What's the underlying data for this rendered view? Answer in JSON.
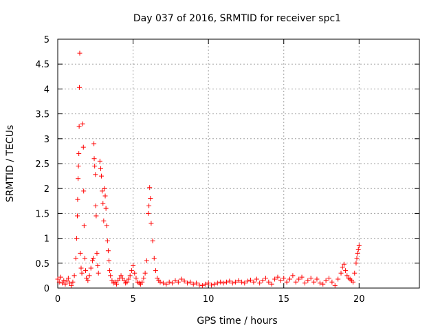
{
  "chart_data": {
    "type": "scatter",
    "title": "Day 037 of 2016, SRMTID for receiver spc1",
    "xlabel": "GPS time / hours",
    "ylabel": "SRMTID / TECUs",
    "xlim": [
      0,
      24
    ],
    "ylim": [
      0,
      5
    ],
    "xticks": [
      0,
      5,
      10,
      15,
      20
    ],
    "xtick_labels": [
      "0",
      "5",
      "10",
      "15",
      "20"
    ],
    "yticks": [
      0,
      0.5,
      1,
      1.5,
      2,
      2.5,
      3,
      3.5,
      4,
      4.5,
      5
    ],
    "ytick_labels": [
      "0",
      "0.5",
      "1",
      "1.5",
      "2",
      "2.5",
      "3",
      "3.5",
      "4",
      "4.5",
      "5"
    ],
    "grid": true,
    "marker": "+",
    "color": "#ff0000",
    "series": [
      {
        "name": "SRMTID",
        "points": [
          [
            0.0,
            0.18
          ],
          [
            0.1,
            0.12
          ],
          [
            0.2,
            0.22
          ],
          [
            0.3,
            0.1
          ],
          [
            0.4,
            0.15
          ],
          [
            0.5,
            0.08
          ],
          [
            0.6,
            0.14
          ],
          [
            0.7,
            0.2
          ],
          [
            0.8,
            0.1
          ],
          [
            0.9,
            0.05
          ],
          [
            1.0,
            0.12
          ],
          [
            1.1,
            0.25
          ],
          [
            1.2,
            0.6
          ],
          [
            1.25,
            1.0
          ],
          [
            1.3,
            1.45
          ],
          [
            1.32,
            1.78
          ],
          [
            1.35,
            2.2
          ],
          [
            1.37,
            2.45
          ],
          [
            1.4,
            2.7
          ],
          [
            1.42,
            3.25
          ],
          [
            1.44,
            4.03
          ],
          [
            1.46,
            4.72
          ],
          [
            1.5,
            0.7
          ],
          [
            1.55,
            0.4
          ],
          [
            1.6,
            0.3
          ],
          [
            1.65,
            3.3
          ],
          [
            1.7,
            2.83
          ],
          [
            1.72,
            1.95
          ],
          [
            1.75,
            1.25
          ],
          [
            1.8,
            0.6
          ],
          [
            1.85,
            0.35
          ],
          [
            1.9,
            0.2
          ],
          [
            2.0,
            0.15
          ],
          [
            2.1,
            0.25
          ],
          [
            2.2,
            0.4
          ],
          [
            2.3,
            0.55
          ],
          [
            2.35,
            0.6
          ],
          [
            2.4,
            2.9
          ],
          [
            2.42,
            2.6
          ],
          [
            2.45,
            2.45
          ],
          [
            2.5,
            2.28
          ],
          [
            2.52,
            1.65
          ],
          [
            2.55,
            1.45
          ],
          [
            2.6,
            0.7
          ],
          [
            2.65,
            0.45
          ],
          [
            2.7,
            0.3
          ],
          [
            2.8,
            2.55
          ],
          [
            2.85,
            2.4
          ],
          [
            2.9,
            2.25
          ],
          [
            2.95,
            1.95
          ],
          [
            3.0,
            1.7
          ],
          [
            3.05,
            1.35
          ],
          [
            3.1,
            2.0
          ],
          [
            3.15,
            1.85
          ],
          [
            3.2,
            1.6
          ],
          [
            3.25,
            1.25
          ],
          [
            3.3,
            0.95
          ],
          [
            3.35,
            0.75
          ],
          [
            3.4,
            0.55
          ],
          [
            3.45,
            0.35
          ],
          [
            3.5,
            0.25
          ],
          [
            3.6,
            0.15
          ],
          [
            3.7,
            0.1
          ],
          [
            3.8,
            0.12
          ],
          [
            3.9,
            0.08
          ],
          [
            4.0,
            0.15
          ],
          [
            4.1,
            0.2
          ],
          [
            4.2,
            0.25
          ],
          [
            4.3,
            0.2
          ],
          [
            4.4,
            0.15
          ],
          [
            4.5,
            0.1
          ],
          [
            4.6,
            0.12
          ],
          [
            4.7,
            0.18
          ],
          [
            4.8,
            0.25
          ],
          [
            4.9,
            0.35
          ],
          [
            5.0,
            0.45
          ],
          [
            5.1,
            0.3
          ],
          [
            5.2,
            0.2
          ],
          [
            5.3,
            0.12
          ],
          [
            5.4,
            0.1
          ],
          [
            5.5,
            0.08
          ],
          [
            5.6,
            0.12
          ],
          [
            5.7,
            0.2
          ],
          [
            5.8,
            0.3
          ],
          [
            5.9,
            0.55
          ],
          [
            6.0,
            1.5
          ],
          [
            6.05,
            1.65
          ],
          [
            6.1,
            2.02
          ],
          [
            6.15,
            1.8
          ],
          [
            6.2,
            1.3
          ],
          [
            6.3,
            0.95
          ],
          [
            6.4,
            0.6
          ],
          [
            6.5,
            0.35
          ],
          [
            6.6,
            0.2
          ],
          [
            6.7,
            0.15
          ],
          [
            6.8,
            0.12
          ],
          [
            7.0,
            0.1
          ],
          [
            7.2,
            0.08
          ],
          [
            7.4,
            0.12
          ],
          [
            7.6,
            0.1
          ],
          [
            7.8,
            0.15
          ],
          [
            8.0,
            0.12
          ],
          [
            8.2,
            0.18
          ],
          [
            8.4,
            0.14
          ],
          [
            8.6,
            0.1
          ],
          [
            8.8,
            0.12
          ],
          [
            9.0,
            0.08
          ],
          [
            9.2,
            0.1
          ],
          [
            9.4,
            0.06
          ],
          [
            9.6,
            0.05
          ],
          [
            9.8,
            0.08
          ],
          [
            10.0,
            0.1
          ],
          [
            10.2,
            0.06
          ],
          [
            10.4,
            0.08
          ],
          [
            10.6,
            0.1
          ],
          [
            10.8,
            0.12
          ],
          [
            11.0,
            0.1
          ],
          [
            11.2,
            0.12
          ],
          [
            11.4,
            0.14
          ],
          [
            11.6,
            0.1
          ],
          [
            11.8,
            0.12
          ],
          [
            12.0,
            0.15
          ],
          [
            12.2,
            0.12
          ],
          [
            12.4,
            0.1
          ],
          [
            12.6,
            0.14
          ],
          [
            12.8,
            0.16
          ],
          [
            13.0,
            0.12
          ],
          [
            13.2,
            0.18
          ],
          [
            13.4,
            0.1
          ],
          [
            13.6,
            0.15
          ],
          [
            13.8,
            0.2
          ],
          [
            14.0,
            0.12
          ],
          [
            14.2,
            0.08
          ],
          [
            14.4,
            0.18
          ],
          [
            14.6,
            0.22
          ],
          [
            14.8,
            0.15
          ],
          [
            15.0,
            0.2
          ],
          [
            15.2,
            0.12
          ],
          [
            15.4,
            0.18
          ],
          [
            15.6,
            0.25
          ],
          [
            15.8,
            0.12
          ],
          [
            16.0,
            0.18
          ],
          [
            16.2,
            0.22
          ],
          [
            16.4,
            0.1
          ],
          [
            16.6,
            0.15
          ],
          [
            16.8,
            0.2
          ],
          [
            17.0,
            0.12
          ],
          [
            17.2,
            0.18
          ],
          [
            17.4,
            0.1
          ],
          [
            17.6,
            0.08
          ],
          [
            17.8,
            0.15
          ],
          [
            18.0,
            0.2
          ],
          [
            18.2,
            0.12
          ],
          [
            18.4,
            0.05
          ],
          [
            18.6,
            0.18
          ],
          [
            18.8,
            0.3
          ],
          [
            18.9,
            0.42
          ],
          [
            19.0,
            0.48
          ],
          [
            19.1,
            0.35
          ],
          [
            19.2,
            0.25
          ],
          [
            19.3,
            0.2
          ],
          [
            19.4,
            0.18
          ],
          [
            19.5,
            0.15
          ],
          [
            19.6,
            0.12
          ],
          [
            19.7,
            0.3
          ],
          [
            19.8,
            0.5
          ],
          [
            19.85,
            0.6
          ],
          [
            19.9,
            0.7
          ],
          [
            19.95,
            0.78
          ],
          [
            20.0,
            0.85
          ]
        ]
      }
    ]
  }
}
